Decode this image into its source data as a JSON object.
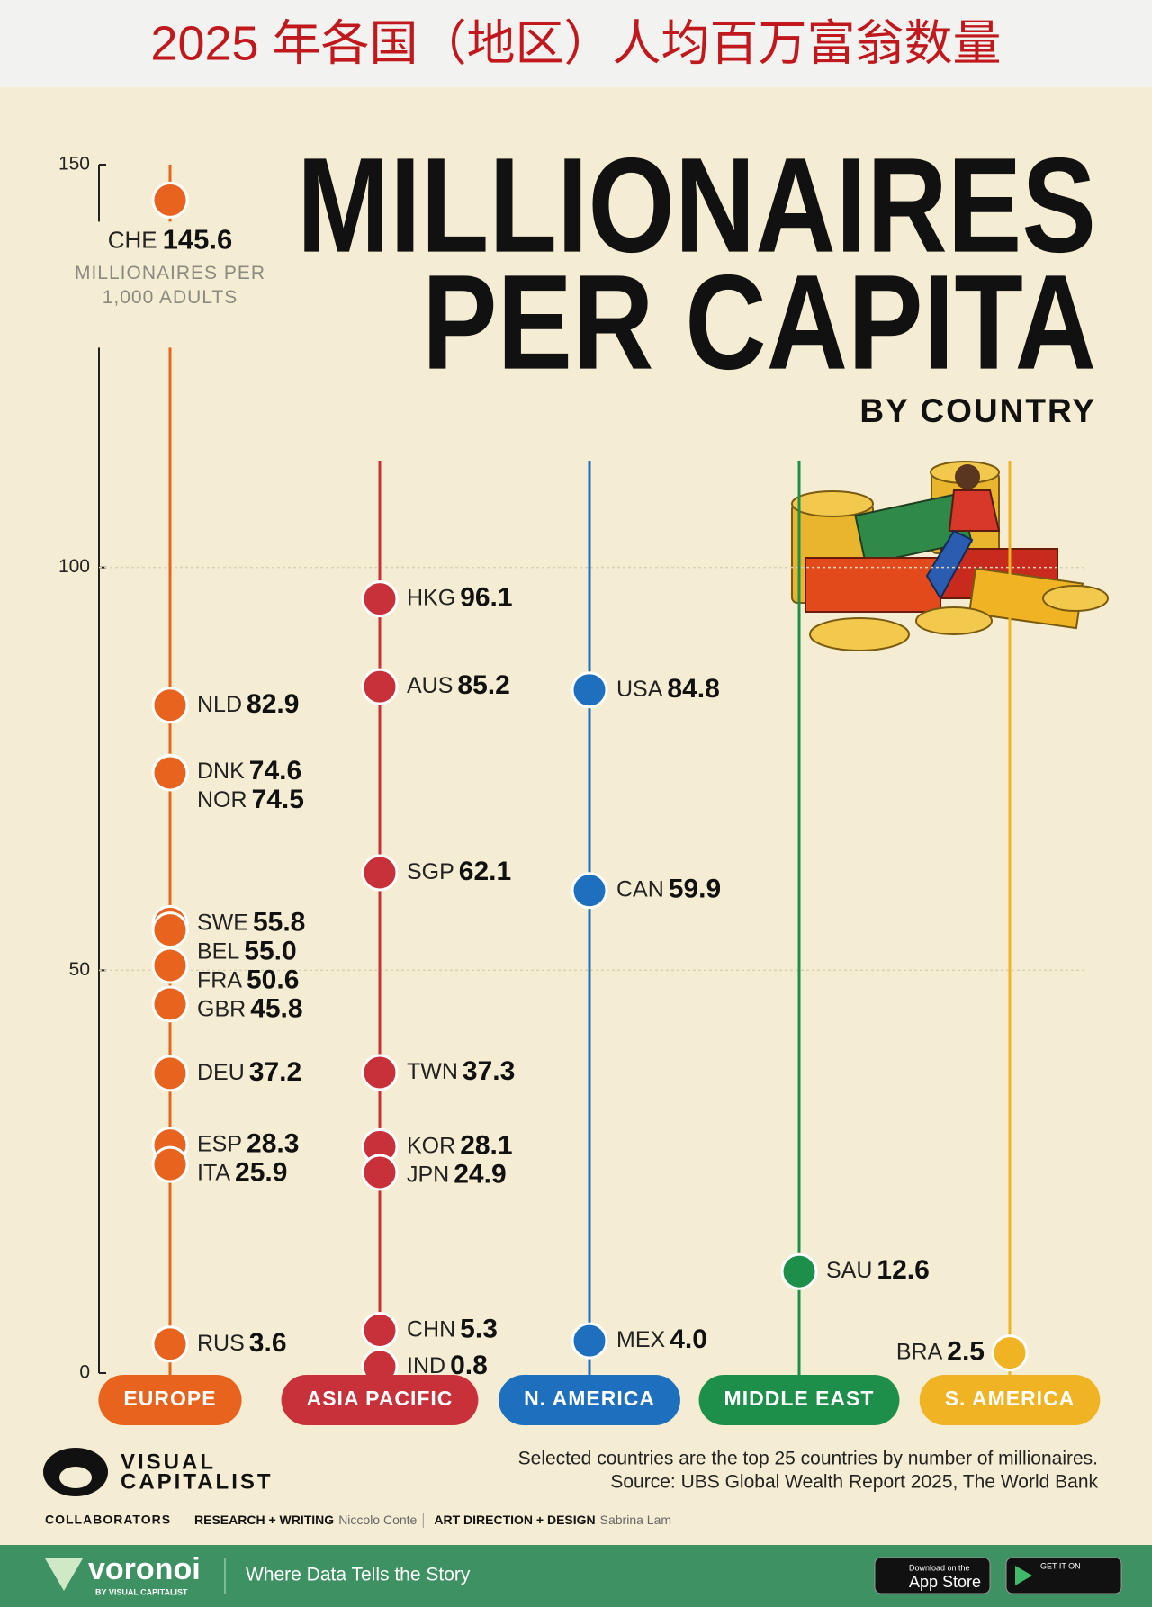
{
  "banner": "2025 年各国（地区）人均百万富翁数量",
  "chart_data": {
    "type": "dot",
    "title": [
      "MILLIONAIRES",
      "PER CAPITA"
    ],
    "subtitle": "BY COUNTRY",
    "y_label": [
      "MILLIONAIRES PER",
      "1,000 ADULTS"
    ],
    "ylim": [
      0,
      150
    ],
    "yticks": [
      0,
      50,
      100,
      150
    ],
    "grid": true,
    "series": [
      {
        "name": "EUROPE",
        "color": "#e8641e",
        "labels": [
          "CHE",
          "NLD",
          "DNK",
          "NOR",
          "SWE",
          "BEL",
          "FRA",
          "GBR",
          "DEU",
          "ESP",
          "ITA",
          "RUS"
        ],
        "values": [
          145.6,
          82.9,
          74.6,
          74.5,
          55.8,
          55,
          50.6,
          45.8,
          37.2,
          28.3,
          25.9,
          3.6
        ],
        "value_labels": [
          "145.6",
          "82.9",
          "74.6",
          "74.5",
          "55.8",
          "55.0",
          "50.6",
          "45.8",
          "37.2",
          "28.3",
          "25.9",
          "3.6"
        ]
      },
      {
        "name": "ASIA PACIFIC",
        "color": "#c8303a",
        "labels": [
          "HKG",
          "AUS",
          "SGP",
          "TWN",
          "KOR",
          "JPN",
          "CHN",
          "IND"
        ],
        "values": [
          96.1,
          85.2,
          62.1,
          37.3,
          28.1,
          24.9,
          5.3,
          0.8
        ]
      },
      {
        "name": "N. AMERICA",
        "color": "#1f6fbf",
        "labels": [
          "USA",
          "CAN",
          "MEX"
        ],
        "values": [
          84.8,
          59.9,
          4
        ],
        "value_labels": [
          "84.8",
          "59.9",
          "4.0"
        ]
      },
      {
        "name": "MIDDLE EAST",
        "color": "#1e8f4a",
        "labels": [
          "SAU"
        ],
        "values": [
          12.6
        ]
      },
      {
        "name": "S. AMERICA",
        "color": "#f0b324",
        "labels": [
          "BRA"
        ],
        "values": [
          2.5
        ]
      }
    ],
    "notes": [
      "Selected countries are the top 25 countries by number of millionaires.",
      "Source: UBS Global Wealth Report 2025, The World Bank"
    ]
  },
  "footer": {
    "logo": [
      "VISUAL",
      "CAPITALIST"
    ],
    "collaborators": "COLLABORATORS",
    "credits": [
      {
        "role": "RESEARCH + WRITING",
        "name": "Niccolo Conte"
      },
      {
        "role": "ART DIRECTION + DESIGN",
        "name": "Sabrina Lam"
      }
    ],
    "brand": "voronoi",
    "brand_sub": "BY VISUAL CAPITALIST",
    "tagline": "Where Data Tells the Story",
    "app_store": [
      "Download on the",
      "App Store"
    ],
    "google_play": "GET IT ON"
  }
}
